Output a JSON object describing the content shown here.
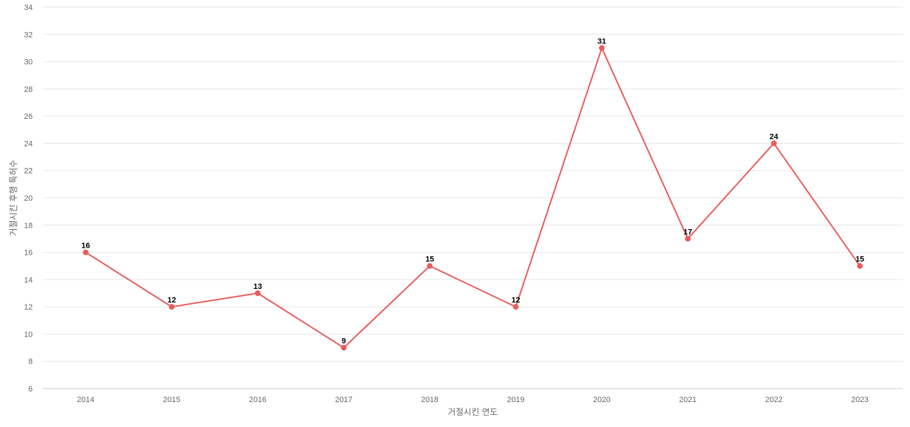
{
  "chart_data": {
    "type": "line",
    "title": "",
    "xlabel": "거절시킨 연도",
    "ylabel": "거절시킨 후행 특허수",
    "categories": [
      "2014",
      "2015",
      "2016",
      "2017",
      "2018",
      "2019",
      "2020",
      "2021",
      "2022",
      "2023"
    ],
    "series": [
      {
        "values": [
          16,
          12,
          13,
          9,
          15,
          12,
          31,
          17,
          24,
          15
        ],
        "color": "#e85c5c"
      }
    ],
    "ylim": [
      6,
      34
    ],
    "yticks": [
      6,
      8,
      10,
      12,
      14,
      16,
      18,
      20,
      22,
      24,
      26,
      28,
      30,
      32,
      34
    ],
    "grid": true,
    "legend": "none",
    "data_labels": true
  }
}
